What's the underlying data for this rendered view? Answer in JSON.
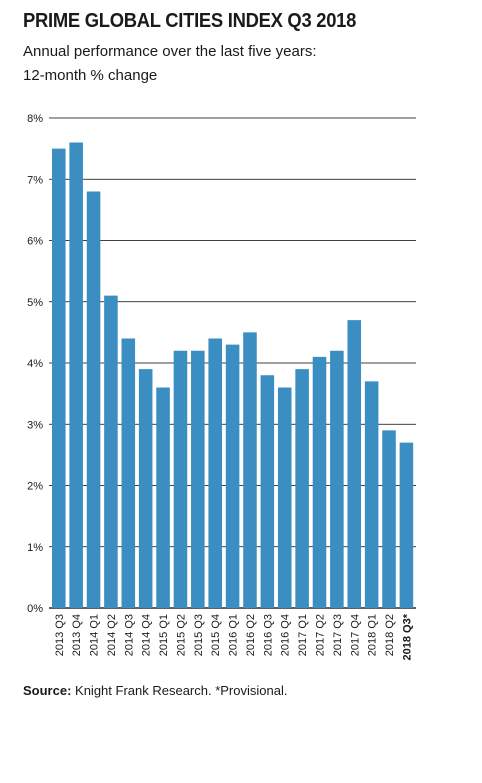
{
  "title": "PRIME GLOBAL CITIES INDEX Q3 2018",
  "subtitle_line1": "Annual performance over the last five years:",
  "subtitle_line2": "12-month % change",
  "source_label": "Source:",
  "source_text": "Knight Frank Research. *Provisional.",
  "colors": {
    "bar": "#3a8ec2",
    "grid": "#000000"
  },
  "chart_data": {
    "type": "bar",
    "title": "PRIME GLOBAL CITIES INDEX Q3 2018",
    "subtitle": "Annual performance over the last five years: 12-month % change",
    "xlabel": "",
    "ylabel": "",
    "ylim": [
      0,
      8
    ],
    "yticks": [
      0,
      1,
      2,
      3,
      4,
      5,
      6,
      7,
      8
    ],
    "ytick_suffix": "%",
    "grid": true,
    "categories": [
      "2013 Q3",
      "2013 Q4",
      "2014 Q1",
      "2014 Q2",
      "2014 Q3",
      "2014 Q4",
      "2015 Q1",
      "2015 Q2",
      "2015 Q3",
      "2015 Q4",
      "2016 Q1",
      "2016 Q2",
      "2016 Q3",
      "2016 Q4",
      "2017 Q1",
      "2017 Q2",
      "2017 Q3",
      "2017 Q4",
      "2018 Q1",
      "2018 Q2",
      "2018 Q3*"
    ],
    "values": [
      7.5,
      7.6,
      6.8,
      5.1,
      4.4,
      3.9,
      3.6,
      4.2,
      4.2,
      4.4,
      4.3,
      4.5,
      3.8,
      3.6,
      3.9,
      4.1,
      4.2,
      4.7,
      3.7,
      2.9,
      2.7
    ],
    "bold_categories": [
      "2018 Q3*"
    ]
  }
}
